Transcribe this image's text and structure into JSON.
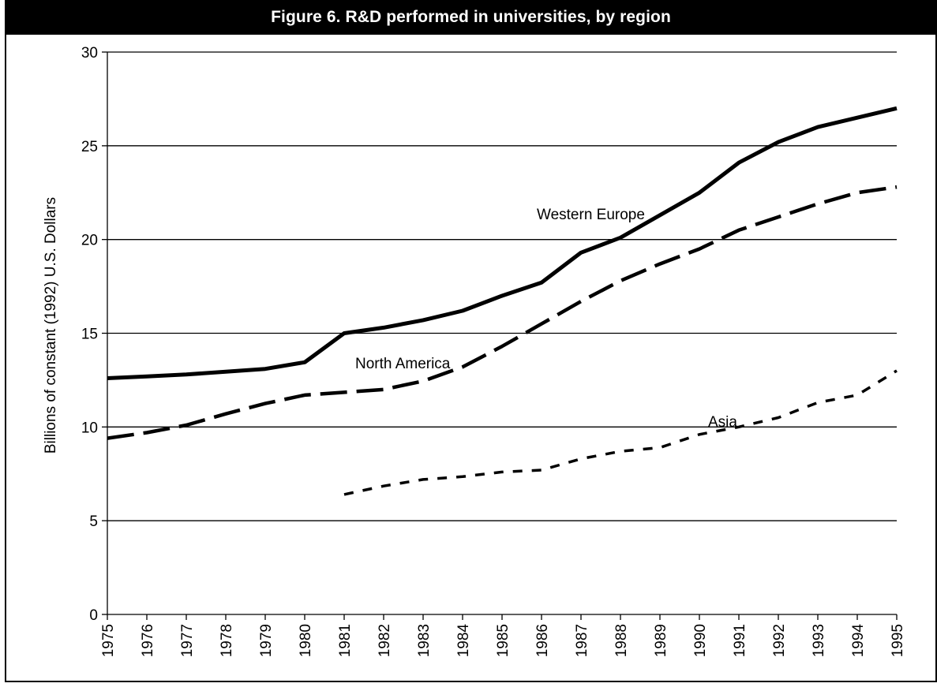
{
  "chart_data": {
    "type": "line",
    "title": "Figure 6. R&D performed in universities, by region",
    "ylabel": "Billions of constant (1992) U.S. Dollars",
    "xlabel": "",
    "ylim": [
      0,
      30
    ],
    "yticks": [
      0,
      5,
      10,
      15,
      20,
      25,
      30
    ],
    "grid": true,
    "legend": "inline labels",
    "x": [
      "1975",
      "1976",
      "1977",
      "1978",
      "1979",
      "1980",
      "1981",
      "1982",
      "1983",
      "1984",
      "1985",
      "1986",
      "1987",
      "1988",
      "1989",
      "1990",
      "1991",
      "1992",
      "1993",
      "1994",
      "1995"
    ],
    "series": [
      {
        "name": "Western Europe",
        "style": "solid",
        "values": [
          12.6,
          12.7,
          12.8,
          12.95,
          13.1,
          13.45,
          15.0,
          15.3,
          15.7,
          16.2,
          17.0,
          17.7,
          19.3,
          20.1,
          21.3,
          22.5,
          24.1,
          25.2,
          26.0,
          26.5,
          27.0
        ]
      },
      {
        "name": "North America",
        "style": "long-dash",
        "values": [
          9.4,
          9.7,
          10.1,
          10.7,
          11.25,
          11.7,
          11.85,
          12.0,
          12.45,
          13.2,
          14.3,
          15.5,
          16.7,
          17.8,
          18.7,
          19.5,
          20.5,
          21.2,
          21.9,
          22.5,
          22.8
        ]
      },
      {
        "name": "Asia",
        "style": "short-dash",
        "values": [
          null,
          null,
          null,
          null,
          null,
          null,
          6.4,
          6.85,
          7.2,
          7.35,
          7.6,
          7.7,
          8.3,
          8.7,
          8.9,
          9.6,
          10.0,
          10.5,
          11.3,
          11.7,
          13.0
        ]
      }
    ],
    "annotations": [
      {
        "text": "Western Europe",
        "series": "Western Europe"
      },
      {
        "text": "North America",
        "series": "North America"
      },
      {
        "text": "Asia",
        "series": "Asia"
      }
    ]
  }
}
